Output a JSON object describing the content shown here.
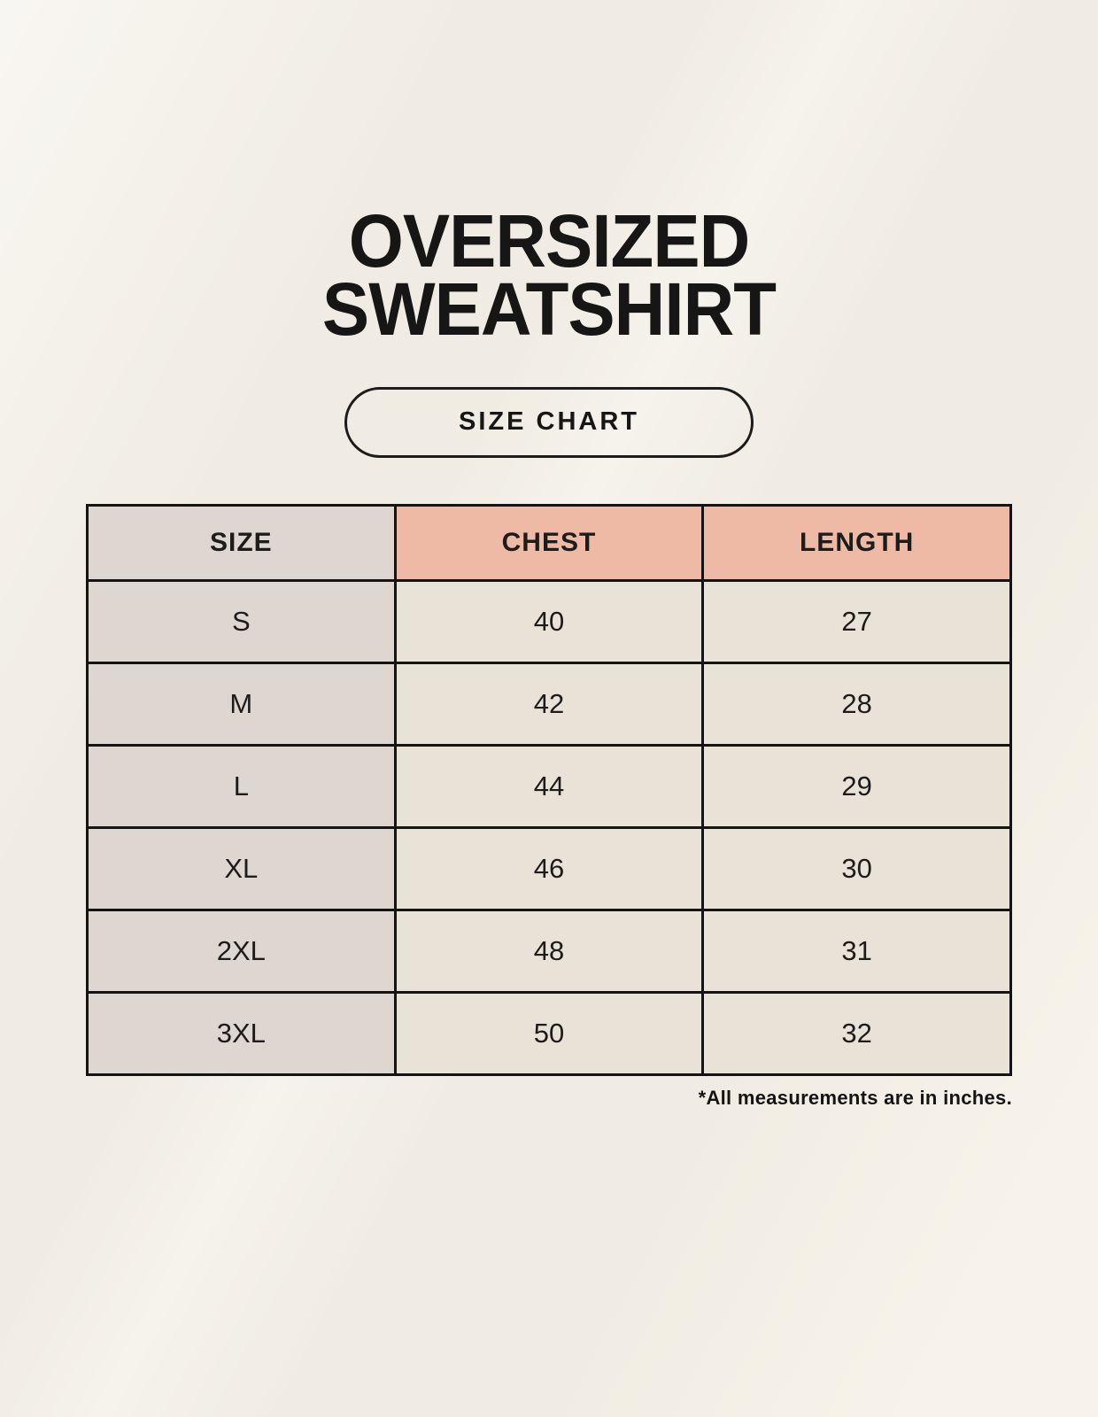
{
  "title": {
    "line1": "OVERSIZED",
    "line2": "SWEATSHIRT"
  },
  "size_chart_button": {
    "label": "SIZE CHART"
  },
  "table": {
    "headers": [
      "SIZE",
      "CHEST",
      "LENGTH"
    ],
    "rows": [
      {
        "size": "S",
        "chest": "40",
        "length": "27"
      },
      {
        "size": "M",
        "chest": "42",
        "length": "28"
      },
      {
        "size": "L",
        "chest": "44",
        "length": "29"
      },
      {
        "size": "XL",
        "chest": "46",
        "length": "30"
      },
      {
        "size": "2XL",
        "chest": "48",
        "length": "31"
      },
      {
        "size": "3XL",
        "chest": "50",
        "length": "32"
      }
    ]
  },
  "footnote": "*All measurements are in inches.",
  "colors": {
    "background": "#f7f3ea",
    "header_accent": "#efbaa5",
    "size_column": "#ddd6d1",
    "data_cell": "#e9e2d6",
    "table_border": "#141414",
    "text": "#161616"
  }
}
